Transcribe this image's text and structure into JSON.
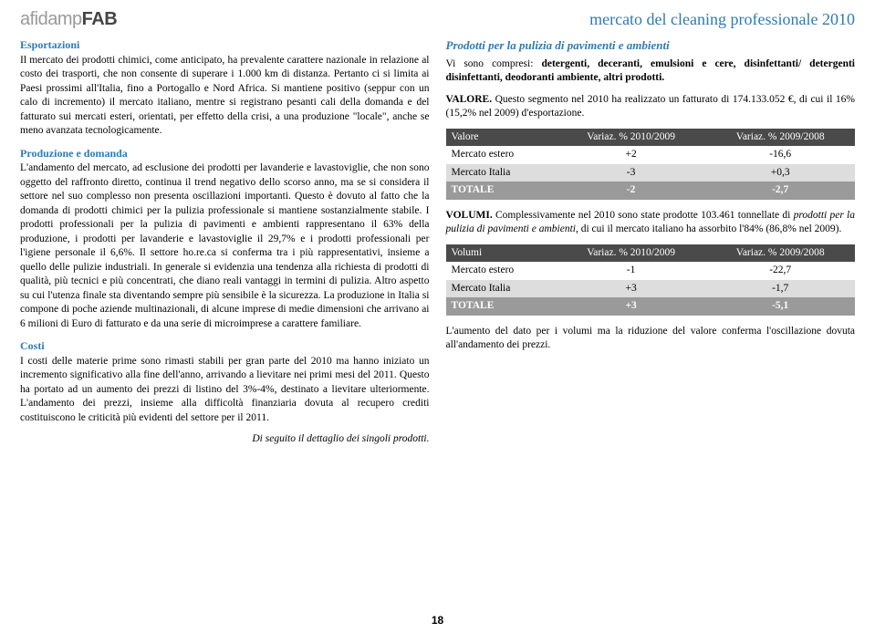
{
  "logo": {
    "part1": "afidamp",
    "part2": "FAB"
  },
  "header_title": "mercato del cleaning professionale 2010",
  "left": {
    "sec1_title": "Esportazioni",
    "sec1_body": "Il mercato dei prodotti chimici, come anticipato, ha prevalente carattere nazionale in relazione al costo dei trasporti, che non consente di superare i 1.000 km di distanza. Pertanto ci si limita ai Paesi prossimi all'Italia, fino a Portogallo e Nord Africa. Si mantiene positivo (seppur con un calo di incremento) il mercato italiano, mentre si registrano pesanti cali della domanda e del fatturato sui mercati esteri, orientati, per effetto della crisi, a una produzione \"locale\", anche se meno avanzata tecnologicamente.",
    "sec2_title": "Produzione e domanda",
    "sec2_body": "L'andamento del mercato, ad esclusione dei prodotti per lavanderie e lavastoviglie, che non sono oggetto del raffronto diretto, continua il trend negativo dello scorso anno, ma se si considera il settore nel suo complesso non presenta oscillazioni importanti. Questo è dovuto al fatto che la domanda di prodotti chimici per la pulizia professionale si mantiene sostanzialmente stabile. I prodotti professionali per la pulizia di pavimenti e ambienti rappresentano il 63% della produzione, i prodotti per lavanderie e lavastoviglie il 29,7% e i prodotti professionali per l'igiene personale il 6,6%. Il settore ho.re.ca si conferma tra i più rappresentativi, insieme a quello delle pulizie industriali. In generale si evidenzia una tendenza alla richiesta di prodotti di qualità, più tecnici e più concentrati, che diano reali vantaggi in termini di pulizia. Altro aspetto su cui l'utenza finale sta diventando sempre più sensibile è la sicurezza. La produzione in Italia si compone di poche aziende multinazionali, di alcune imprese di medie dimensioni che arrivano ai 6 milioni di Euro di fatturato e da una serie di microimprese a carattere familiare.",
    "sec3_title": "Costi",
    "sec3_body": "I costi delle materie prime sono rimasti stabili per gran parte del 2010 ma hanno iniziato un incremento significativo alla fine dell'anno, arrivando a lievitare nei primi mesi del 2011. Questo ha portato ad un aumento dei prezzi di listino del 3%-4%, destinato a lievitare ulteriormente. L'andamento dei prezzi, insieme alla difficoltà finanziaria dovuta al recupero crediti costituiscono le criticità più evidenti del settore per il 2011.",
    "footer_note": "Di seguito il dettaglio dei singoli prodotti."
  },
  "right": {
    "title": "Prodotti per la pulizia di pavimenti e ambienti",
    "intro_pre": "Vi sono compresi: ",
    "intro_bold": "detergenti, deceranti, emulsioni e cere, disinfettanti/ detergenti disinfettanti, deodoranti ambiente, altri prodotti.",
    "valore_label": "VALORE.",
    "valore_text": " Questo segmento nel 2010 ha realizzato un fatturato di 174.133.052 €, di cui il 16%  (15,2% nel 2009) d'esportazione.",
    "volumi_label": "VOLUMI.",
    "volumi_text_pre": " Complessivamente nel 2010 sono state prodotte 103.461 tonnellate di ",
    "volumi_text_italic": "prodotti per la pulizia di pavimenti e ambienti",
    "volumi_text_post": ", di cui il mercato italiano ha assorbito l'84% (86,8% nel 2009).",
    "final_para": "L'aumento del dato per i volumi ma la riduzione del valore conferma l'oscillazione dovuta all'andamento dei prezzi."
  },
  "table1": {
    "headers": [
      "Valore",
      "Variaz. % 2010/2009",
      "Variaz. % 2009/2008"
    ],
    "rows": [
      {
        "label": "Mercato estero",
        "c1": "+2",
        "c2": "-16,6"
      },
      {
        "label": "Mercato Italia",
        "c1": "-3",
        "c2": "+0,3"
      }
    ],
    "totale": {
      "label": "TOTALE",
      "c1": "-2",
      "c2": "-2,7"
    }
  },
  "table2": {
    "headers": [
      "Volumi",
      "Variaz. % 2010/2009",
      "Variaz. % 2009/2008"
    ],
    "rows": [
      {
        "label": "Mercato estero",
        "c1": "-1",
        "c2": "-22,7"
      },
      {
        "label": "Mercato Italia",
        "c1": "+3",
        "c2": "-1,7"
      }
    ],
    "totale": {
      "label": "TOTALE",
      "c1": "+3",
      "c2": "-5,1"
    }
  },
  "page_number": "18",
  "colors": {
    "brand_blue": "#2e7bb5",
    "table_header": "#4a4a4a",
    "row_alt": "#dddddd",
    "totale_bg": "#9a9a9a"
  }
}
